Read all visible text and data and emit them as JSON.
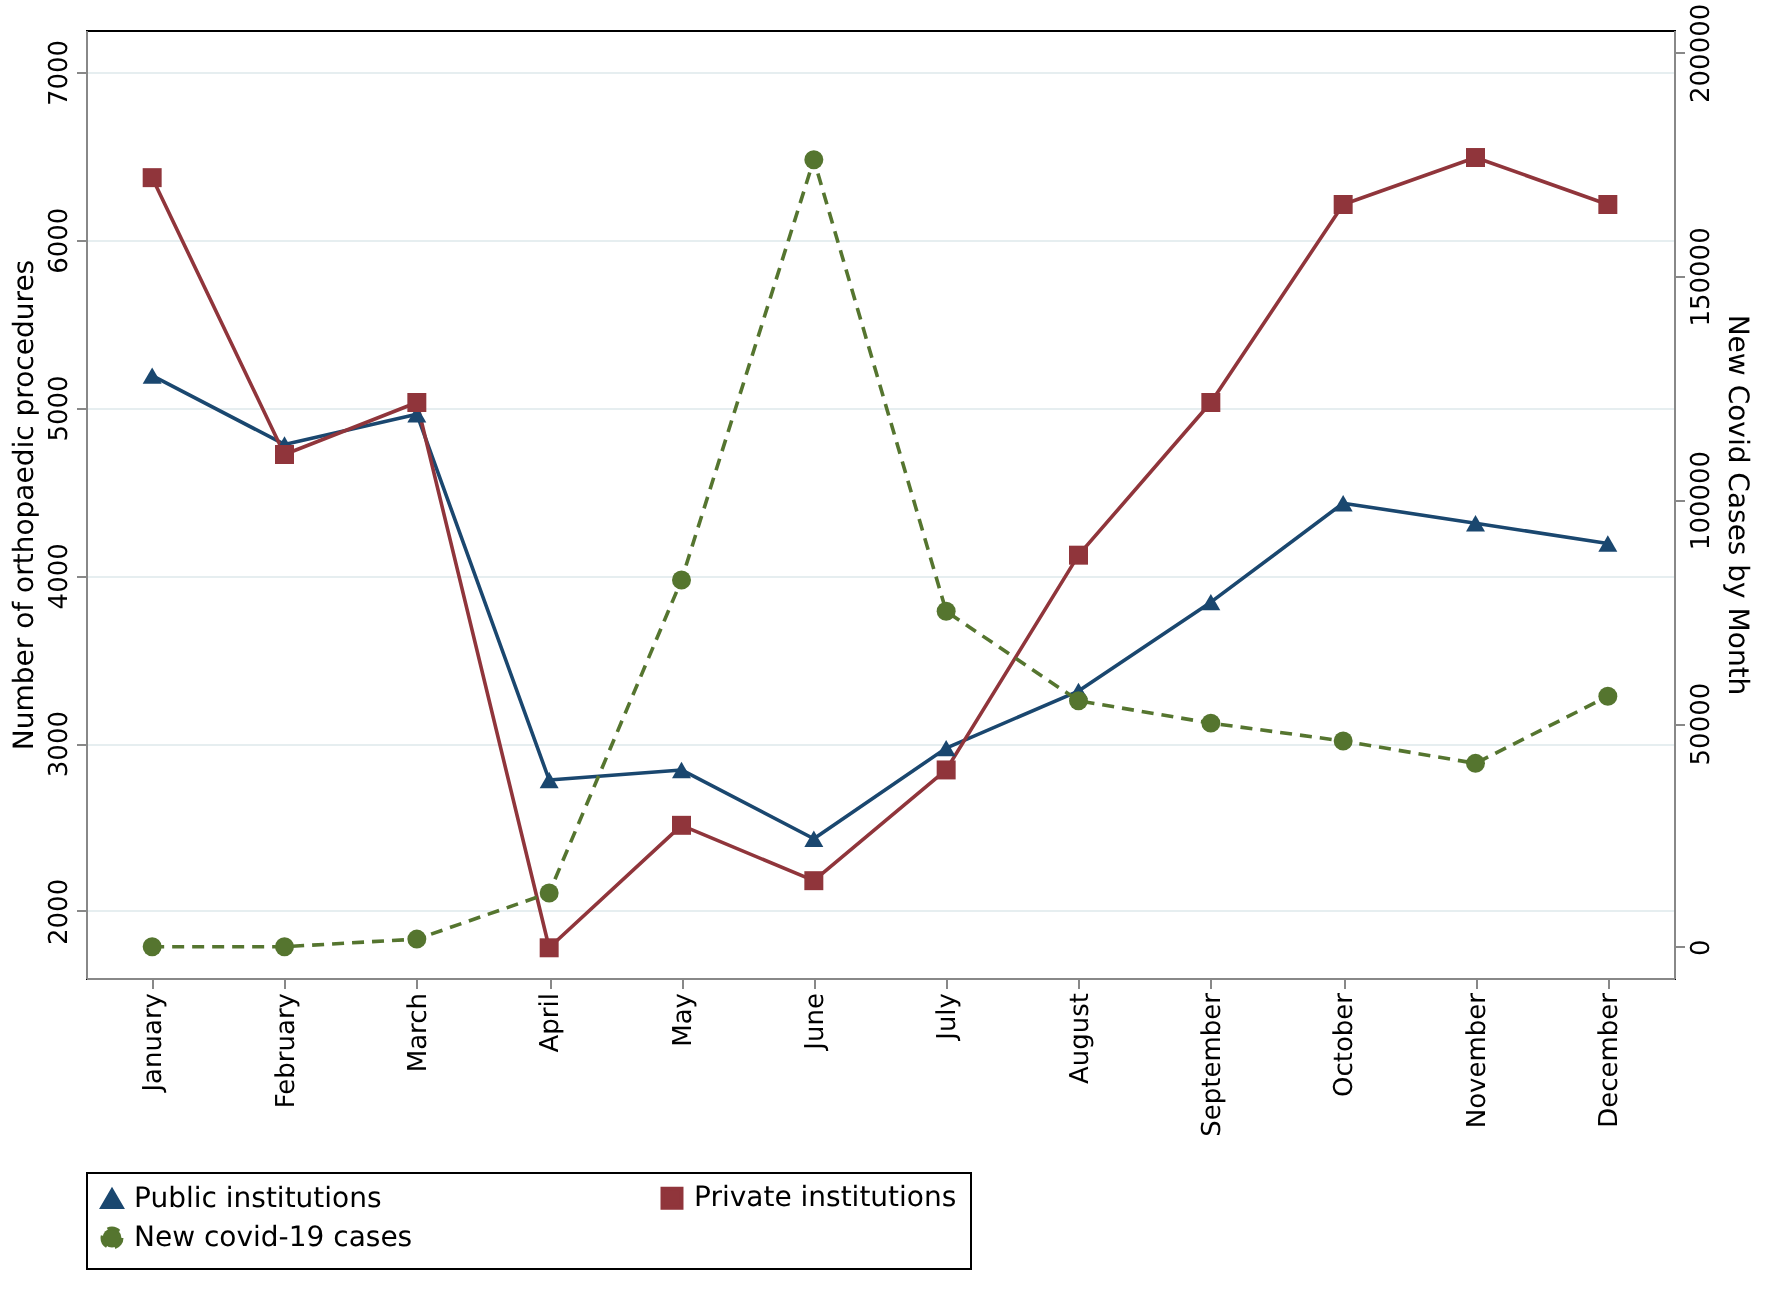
{
  "chart_data": {
    "type": "line",
    "xlabel": null,
    "ylabel": "Number of orthopaedic procedures",
    "y2label": "New Covid Cases by Month",
    "categories": [
      "January",
      "February",
      "March",
      "April",
      "May",
      "June",
      "July",
      "August",
      "September",
      "October",
      "November",
      "December"
    ],
    "series": [
      {
        "name": "Public institutions",
        "color": "#1a476f",
        "marker": "triangle",
        "line_style": "solid",
        "values": [
          5190,
          4780,
          4960,
          2780,
          2840,
          2430,
          2970,
          3310,
          3840,
          4430,
          4310,
          4190
        ]
      },
      {
        "name": "Private institutions",
        "color": "#90353b",
        "marker": "square",
        "line_style": "solid",
        "values": [
          6370,
          4720,
          5030,
          1780,
          2510,
          2180,
          2840,
          4120,
          5030,
          6210,
          6490,
          6210
        ]
      },
      {
        "name": "New covid-19 cases",
        "color": "#55752f",
        "marker": "circle",
        "line_style": "dashed",
        "axis": "y2",
        "values": [
          0,
          0,
          1700,
          12000,
          82000,
          176000,
          75000,
          55000,
          50000,
          46000,
          41000,
          56000
        ]
      }
    ],
    "ylim": [
      1600,
      7250
    ],
    "yticks": [
      2000,
      3000,
      4000,
      5000,
      6000,
      7000
    ],
    "y2lim": [
      -7000,
      205000
    ],
    "y2ticks": [
      0,
      50000,
      100000,
      150000,
      200000
    ],
    "grid": "y",
    "legend": "bottom"
  }
}
